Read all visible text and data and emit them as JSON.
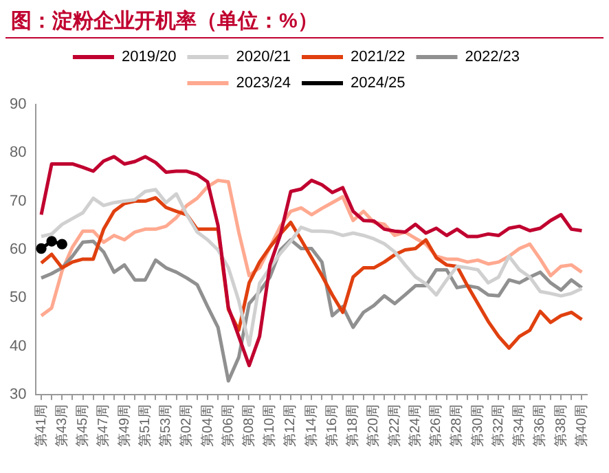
{
  "chart_data": {
    "type": "line",
    "title": "图：淀粉企业开机率（单位：%）",
    "categories": [
      "第41周",
      null,
      "第43周",
      null,
      "第45周",
      null,
      "第47周",
      null,
      "第49周",
      null,
      "第51周",
      null,
      "第53周",
      null,
      "第02周",
      null,
      "第04周",
      null,
      "第06周",
      null,
      "第08周",
      null,
      "第10周",
      null,
      "第12周",
      null,
      "第14周",
      null,
      "第16周",
      null,
      "第18周",
      null,
      "第20周",
      null,
      "第22周",
      null,
      "第24周",
      null,
      "第26周",
      null,
      "第28周",
      null,
      "第30周",
      null,
      "第32周",
      null,
      "第34周",
      null,
      "第36周",
      null,
      "第38周",
      null,
      "第40周"
    ],
    "series": [
      {
        "name": "2019/20",
        "color": "#c0002f",
        "values": [
          67.2,
          77.7,
          77.7,
          77.7,
          77,
          76.2,
          78.3,
          79.2,
          77.7,
          78.2,
          79.2,
          78,
          76,
          76.2,
          76.2,
          75.5,
          74,
          65,
          48,
          42,
          36,
          42,
          56.8,
          63,
          72,
          72.5,
          74.3,
          73.4,
          71.8,
          72.8,
          67.9,
          66,
          65.9,
          64.2,
          63.8,
          63.6,
          65.2,
          63.4,
          64.4,
          62.9,
          64.2,
          62.7,
          62.7,
          63.2,
          62.9,
          64.4,
          64.8,
          63.9,
          64.4,
          66,
          67.2,
          64.2,
          63.9
        ]
      },
      {
        "name": "2020/21",
        "color": "#d0d0d0",
        "values": [
          62.7,
          63.2,
          65.2,
          66.4,
          67.6,
          70.6,
          69.1,
          69.7,
          70,
          70.3,
          72,
          72.4,
          69.7,
          71.5,
          67.2,
          63.6,
          62,
          59.9,
          56.2,
          49.4,
          40.2,
          53,
          56.2,
          59.2,
          61.7,
          64.6,
          63.8,
          63.8,
          63.6,
          62.9,
          63.4,
          62.9,
          62.2,
          61.2,
          59.5,
          56.8,
          54.3,
          52.9,
          50.6,
          53.7,
          56.5,
          56.2,
          55.8,
          53.1,
          54.3,
          58.6,
          55.8,
          54.3,
          51.3,
          50.9,
          50.4,
          50.9,
          51.9
        ]
      },
      {
        "name": "2021/22",
        "color": "#e0400f",
        "values": [
          57.2,
          59,
          56.2,
          57.4,
          58,
          58,
          64.2,
          67.9,
          69.5,
          70,
          70,
          70.7,
          68.7,
          67.9,
          67.2,
          64.2,
          64.2,
          64.2,
          47.6,
          43.3,
          53.1,
          57.4,
          60.5,
          63.2,
          65.6,
          62,
          58.3,
          54.6,
          50.6,
          47,
          54.3,
          56.2,
          56.2,
          57.4,
          58.9,
          59.9,
          60.2,
          62,
          58.3,
          56.8,
          56.5,
          52.5,
          48.8,
          45.1,
          42,
          39.6,
          42,
          43.3,
          47.2,
          44.9,
          46.3,
          47,
          45.5
        ]
      },
      {
        "name": "2022/23",
        "color": "#909090",
        "values": [
          54.1,
          55,
          56.2,
          58.6,
          61.5,
          61.7,
          59.5,
          55.3,
          56.8,
          53.7,
          53.7,
          57.8,
          56.2,
          55.3,
          54.1,
          52.7,
          48.2,
          43.9,
          32.8,
          37.7,
          48.8,
          51.3,
          54.3,
          59.9,
          62,
          60.2,
          60.2,
          57.4,
          46.3,
          48.2,
          43.9,
          47,
          48.4,
          50.4,
          48.8,
          50.6,
          52.5,
          52.5,
          55.8,
          55.8,
          52.1,
          52.5,
          52.1,
          50.6,
          50.4,
          53.7,
          53.1,
          54.3,
          55.3,
          53.1,
          51.6,
          53.7,
          52.1
        ]
      },
      {
        "name": "2023/24",
        "color": "#ffa990",
        "values": [
          46.3,
          47.9,
          55.6,
          60.5,
          63.8,
          63.8,
          61.5,
          62.9,
          62,
          63.6,
          64.2,
          64.2,
          64.8,
          66.6,
          69.1,
          70.6,
          73,
          74.3,
          74,
          63.6,
          54.6,
          56.2,
          60.5,
          64.8,
          67.9,
          68.6,
          67.2,
          68.5,
          69.7,
          70.9,
          66,
          67.9,
          65.6,
          65.2,
          62.9,
          63.6,
          62.3,
          61.1,
          58.6,
          58,
          58,
          57.4,
          57.8,
          57,
          57.4,
          58.6,
          60.2,
          61.1,
          58,
          54.6,
          56.5,
          56.8,
          55.3
        ]
      },
      {
        "name": "2024/25",
        "color": "#000000",
        "marker": "circle",
        "values": [
          60.2,
          61.7,
          61.1,
          null,
          null,
          null,
          null,
          null,
          null,
          null,
          null,
          null,
          null,
          null,
          null,
          null,
          null,
          null,
          null,
          null,
          null,
          null,
          null,
          null,
          null,
          null,
          null,
          null,
          null,
          null,
          null,
          null,
          null,
          null,
          null,
          null,
          null,
          null,
          null,
          null,
          null,
          null,
          null,
          null,
          null,
          null,
          null,
          null,
          null,
          null,
          null,
          null,
          null
        ]
      }
    ],
    "ylim": [
      30,
      90
    ],
    "yticks": [
      30,
      40,
      50,
      60,
      70,
      80,
      90
    ],
    "grid": false,
    "legend": "top",
    "marker": "none",
    "line_style": "solid"
  }
}
